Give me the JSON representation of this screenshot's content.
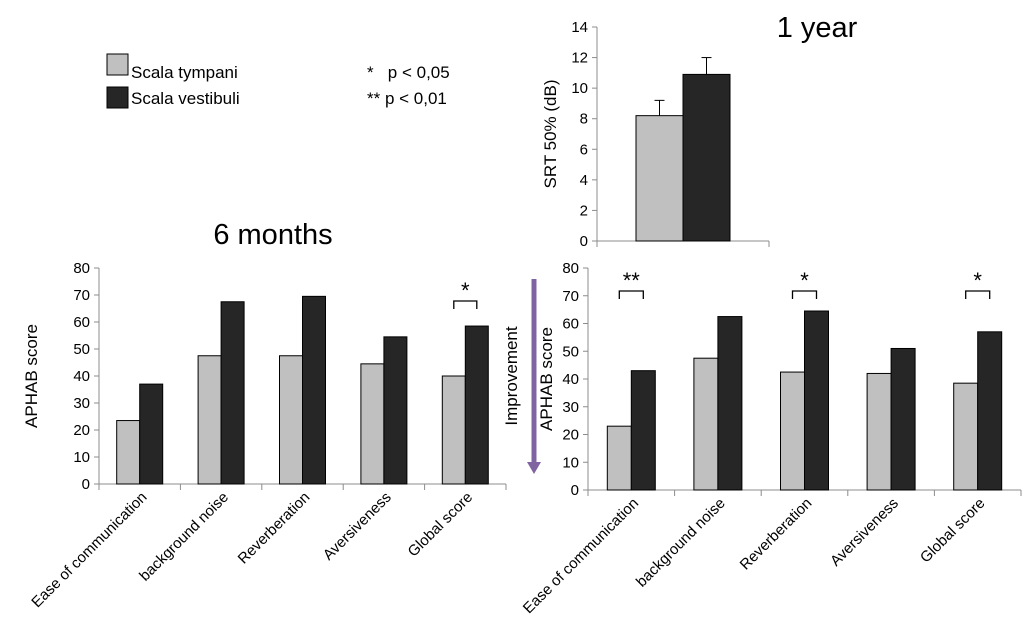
{
  "colors": {
    "scala_tympani": "#c0c0c0",
    "scala_vestibuli": "#262626",
    "bar_stroke": "#000000",
    "arrow": "#8064a2",
    "axis": "#8c8c8c"
  },
  "legend": {
    "items": [
      {
        "label": "Scala tympani",
        "color": "#c0c0c0"
      },
      {
        "label": "Scala vestibuli",
        "color": "#262626"
      }
    ],
    "sig1": "*   p < 0,05",
    "sig2": "** p < 0,01"
  },
  "arrow_label": "Improvement",
  "chart_data": [
    {
      "type": "bar",
      "title": "1 year",
      "ylabel": "SRT 50% (dB)",
      "xlabel": "",
      "categories": [
        ""
      ],
      "series": [
        {
          "name": "Scala tympani",
          "values": [
            8.2
          ],
          "errors": [
            1.0
          ]
        },
        {
          "name": "Scala vestibuli",
          "values": [
            10.9
          ],
          "errors": [
            1.1
          ]
        }
      ],
      "ylim": [
        0,
        14
      ],
      "yticks": [
        "0",
        "2",
        "4",
        "6",
        "8",
        "10",
        "12",
        "14"
      ],
      "significance": []
    },
    {
      "type": "bar",
      "title": "6 months",
      "ylabel": "APHAB score",
      "xlabel": "",
      "categories": [
        "Ease of communication",
        "background noise",
        "Reverberation",
        "Aversiveness",
        "Global score"
      ],
      "series": [
        {
          "name": "Scala tympani",
          "values": [
            23.5,
            47.5,
            47.5,
            44.5,
            40.0
          ]
        },
        {
          "name": "Scala vestibuli",
          "values": [
            37.0,
            67.5,
            69.5,
            54.5,
            58.5
          ]
        }
      ],
      "ylim": [
        0,
        80
      ],
      "yticks": [
        "0",
        "10",
        "20",
        "30",
        "40",
        "50",
        "60",
        "70",
        "80"
      ],
      "significance": [
        "",
        "",
        "",
        "",
        "*"
      ]
    },
    {
      "type": "bar",
      "title": "",
      "ylabel": "APHAB score",
      "xlabel": "",
      "categories": [
        "Ease of communication",
        "background noise",
        "Reverberation",
        "Aversiveness",
        "Global score"
      ],
      "series": [
        {
          "name": "Scala tympani",
          "values": [
            23.0,
            47.5,
            42.5,
            42.0,
            38.5
          ]
        },
        {
          "name": "Scala vestibuli",
          "values": [
            43.0,
            62.5,
            64.5,
            51.0,
            57.0
          ]
        }
      ],
      "ylim": [
        0,
        80
      ],
      "yticks": [
        "0",
        "10",
        "20",
        "30",
        "40",
        "50",
        "60",
        "70",
        "80"
      ],
      "significance": [
        "**",
        "",
        "*",
        "",
        "*"
      ]
    }
  ]
}
